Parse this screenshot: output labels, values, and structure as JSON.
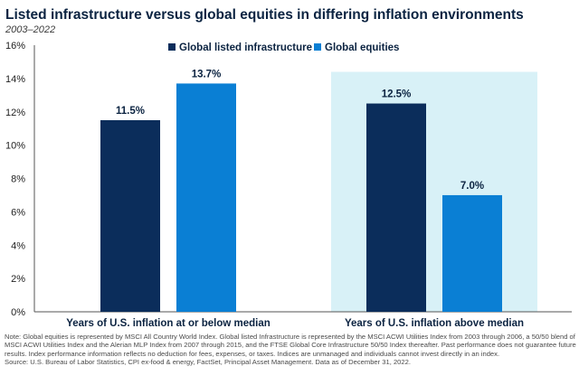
{
  "title": "Listed infrastructure versus global equities in differing inflation environments",
  "subtitle": "2003–2022",
  "colors": {
    "infrastructure": "#0b2d5b",
    "equities": "#0a7fd4",
    "highlight": "#d8f1f7",
    "title": "#0b2341"
  },
  "chart_data": {
    "type": "bar",
    "categories": [
      "Years of U.S. inflation at or below median",
      "Years of U.S. inflation above median"
    ],
    "series": [
      {
        "name": "Global listed infrastructure",
        "values": [
          11.5,
          12.5
        ],
        "labels": [
          "11.5%",
          "12.5%"
        ]
      },
      {
        "name": "Global equities",
        "values": [
          13.7,
          7.0
        ],
        "labels": [
          "13.7%",
          "7.0%"
        ]
      }
    ],
    "ylim": [
      0,
      16
    ],
    "yticks": [
      0,
      2,
      4,
      6,
      8,
      10,
      12,
      14,
      16
    ],
    "ytick_labels": [
      "0%",
      "2%",
      "4%",
      "6%",
      "8%",
      "10%",
      "12%",
      "14%",
      "16%"
    ],
    "highlighted_category": 1,
    "legend_position": "top-center"
  },
  "notes": {
    "note": "Note: Global equities is represented by MSCI All Country World Index. Global listed Infrastructure is represented by the MSCI ACWI Utilities Index from 2003 through 2006, a 50/50 blend of MSCI ACWI Utilities Index and the Alerian MLP Index from 2007 through 2015, and the FTSE Global Core Infrastructure 50/50 Index thereafter. Past performance does not guarantee future results. Index performance information reflects no deduction for fees, expenses, or taxes. Indices are unmanaged and individuals cannot invest directly in an index.",
    "source": "Source: U.S. Bureau of Labor Statistics, CPI ex-food & energy, FactSet, Principal Asset Management. Data as of December 31, 2022."
  }
}
